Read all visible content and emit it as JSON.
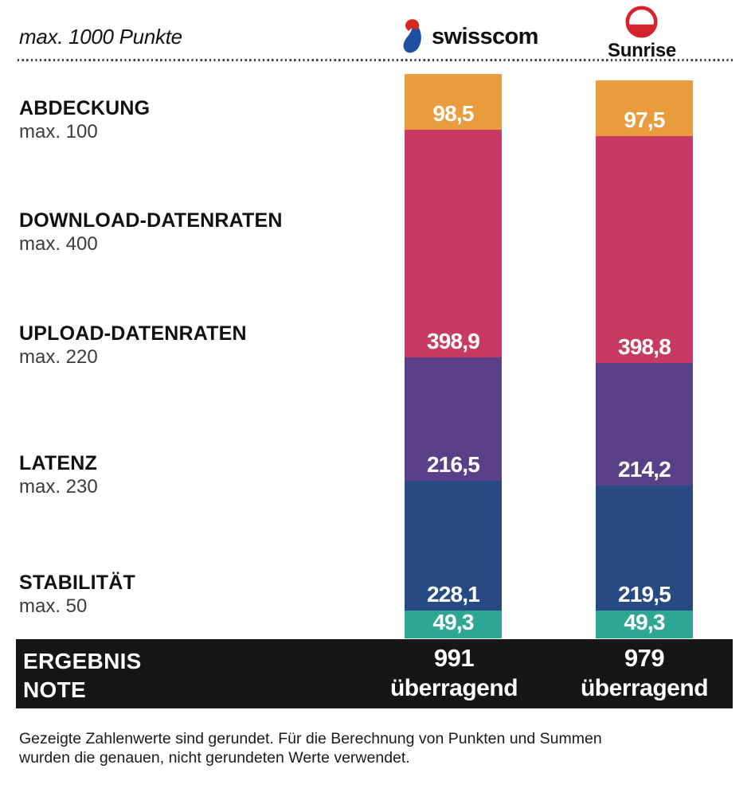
{
  "header": {
    "title": "max. 1000 Punkte",
    "providers": [
      {
        "name": "Swisscom",
        "wordmark": "swisscom"
      },
      {
        "name": "Sunrise",
        "wordmark": "Sunrise"
      }
    ]
  },
  "categories": [
    {
      "label": "ABDECKUNG",
      "max_label": "max. 100"
    },
    {
      "label": "DOWNLOAD-DATENRATEN",
      "max_label": "max. 400"
    },
    {
      "label": "UPLOAD-DATENRATEN",
      "max_label": "max. 220"
    },
    {
      "label": "LATENZ",
      "max_label": "max. 230"
    },
    {
      "label": "STABILITÄT",
      "max_label": "max. 50"
    }
  ],
  "result": {
    "label_line1": "ERGEBNIS",
    "label_line2": "NOTE"
  },
  "footer": {
    "line1": "Gezeigte Zahlenwerte sind gerundet. Für die Berechnung von Punkten und Summen",
    "line2": "wurden die genauen, nicht gerundeten Werte verwendet."
  },
  "chart_data": {
    "type": "bar",
    "subtype": "stacked-vertical-columns",
    "title": "max. 1000 Punkte",
    "ylim": [
      0,
      1000
    ],
    "grid": false,
    "legend": "none",
    "categories": [
      "Abdeckung",
      "Download-Datenraten",
      "Upload-Datenraten",
      "Latenz",
      "Stabilität"
    ],
    "category_keys": [
      "abdeckung",
      "download-datenraten",
      "upload-datenraten",
      "latenz",
      "stabilitaet"
    ],
    "category_max": [
      100,
      400,
      220,
      230,
      50
    ],
    "segment_colors": [
      "#E99C3E",
      "#C73A63",
      "#5A4089",
      "#284A83",
      "#2FA795"
    ],
    "series": [
      {
        "key": "swisscom",
        "name": "Swisscom",
        "values": [
          98.5,
          398.9,
          216.5,
          228.1,
          49.3
        ],
        "value_labels": [
          "98,5",
          "398,9",
          "216,5",
          "228,1",
          "49,3"
        ],
        "total": "991",
        "grade": "überragend"
      },
      {
        "key": "sunrise",
        "name": "Sunrise",
        "values": [
          97.5,
          398.8,
          214.2,
          219.5,
          49.3
        ],
        "value_labels": [
          "97,5",
          "398,8",
          "214,2",
          "219,5",
          "49,3"
        ],
        "total": "979",
        "grade": "überragend"
      }
    ]
  },
  "colors": {
    "swisscom_navy": "#16306F",
    "swisscom_red": "#D6291E",
    "swisscom_blue": "#1E4FA0",
    "sunrise_red": "#D4232B",
    "result_bar_bg": "#161616",
    "segment_orange": "#E99C3E",
    "segment_pink": "#C73A63",
    "segment_purple": "#5A4089",
    "segment_navy": "#284A83",
    "segment_teal": "#2FA795"
  }
}
